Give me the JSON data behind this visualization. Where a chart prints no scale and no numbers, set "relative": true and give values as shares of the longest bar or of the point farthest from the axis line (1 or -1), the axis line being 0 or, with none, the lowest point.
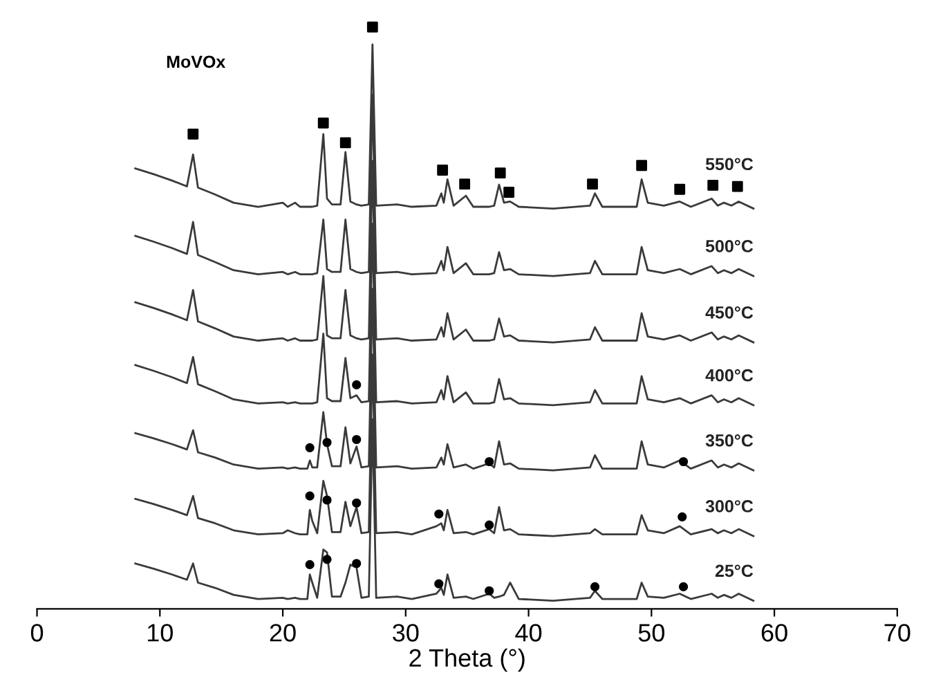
{
  "chart_data": {
    "type": "line",
    "relative": true,
    "xlabel": "2 Theta (°)",
    "xlim": [
      0,
      70
    ],
    "xticks": [
      0,
      10,
      20,
      30,
      40,
      50,
      60,
      70
    ],
    "grid": false,
    "legend": false,
    "marker": "none",
    "line_style": "solid",
    "annotations": [
      "MoVOx"
    ],
    "x": [
      8,
      9.5,
      11,
      12.2,
      12.7,
      13.1,
      14.5,
      16,
      18,
      20,
      20.4,
      21,
      21.4,
      22.0,
      22.2,
      22.4,
      22.8,
      23.3,
      23.6,
      24.0,
      24.7,
      25.1,
      25.5,
      26.0,
      26.4,
      27.0,
      27.3,
      27.6,
      29.3,
      30.5,
      32.5,
      32.9,
      33.1,
      33.4,
      33.9,
      34.9,
      35.5,
      36.8,
      37.2,
      37.6,
      38.0,
      38.5,
      39.2,
      42,
      45.0,
      45.4,
      46.0,
      48.8,
      49.2,
      49.7,
      51,
      52.3,
      53.2,
      54.9,
      55.4,
      55.9,
      56.5,
      57.1,
      58.3
    ],
    "series": [
      {
        "name": "550°C",
        "color": "#3a3a3a",
        "values": [
          0.757,
          0.747,
          0.736,
          0.726,
          0.781,
          0.724,
          0.712,
          0.698,
          0.691,
          0.698,
          0.691,
          0.698,
          0.691,
          0.691,
          0.691,
          0.691,
          0.693,
          0.816,
          0.705,
          0.695,
          0.695,
          0.785,
          0.7,
          0.695,
          0.693,
          0.695,
          0.97,
          0.693,
          0.695,
          0.691,
          0.693,
          0.714,
          0.698,
          0.738,
          0.693,
          0.71,
          0.691,
          0.691,
          0.693,
          0.729,
          0.698,
          0.7,
          0.691,
          0.688,
          0.693,
          0.714,
          0.691,
          0.691,
          0.738,
          0.698,
          0.693,
          0.7,
          0.691,
          0.705,
          0.693,
          0.698,
          0.693,
          0.7,
          0.688
        ]
      },
      {
        "name": "500°C",
        "color": "#3a3a3a",
        "values": [
          0.641,
          0.631,
          0.62,
          0.61,
          0.665,
          0.608,
          0.596,
          0.582,
          0.575,
          0.579,
          0.575,
          0.579,
          0.575,
          0.575,
          0.575,
          0.575,
          0.577,
          0.669,
          0.584,
          0.579,
          0.579,
          0.669,
          0.584,
          0.579,
          0.577,
          0.579,
          0.884,
          0.577,
          0.579,
          0.575,
          0.577,
          0.598,
          0.582,
          0.622,
          0.577,
          0.594,
          0.575,
          0.575,
          0.577,
          0.613,
          0.582,
          0.584,
          0.575,
          0.572,
          0.577,
          0.598,
          0.575,
          0.575,
          0.622,
          0.582,
          0.577,
          0.584,
          0.575,
          0.589,
          0.577,
          0.582,
          0.577,
          0.584,
          0.572
        ]
      },
      {
        "name": "450°C",
        "color": "#3a3a3a",
        "values": [
          0.527,
          0.517,
          0.506,
          0.496,
          0.548,
          0.494,
          0.482,
          0.468,
          0.461,
          0.465,
          0.461,
          0.465,
          0.461,
          0.461,
          0.461,
          0.461,
          0.463,
          0.572,
          0.47,
          0.465,
          0.465,
          0.548,
          0.47,
          0.465,
          0.463,
          0.465,
          0.77,
          0.463,
          0.465,
          0.461,
          0.463,
          0.484,
          0.468,
          0.508,
          0.463,
          0.48,
          0.461,
          0.461,
          0.463,
          0.499,
          0.468,
          0.47,
          0.461,
          0.458,
          0.463,
          0.484,
          0.461,
          0.461,
          0.508,
          0.468,
          0.463,
          0.47,
          0.461,
          0.475,
          0.463,
          0.468,
          0.463,
          0.47,
          0.458
        ]
      },
      {
        "name": "400°C",
        "color": "#3a3a3a",
        "values": [
          0.419,
          0.409,
          0.398,
          0.388,
          0.433,
          0.386,
          0.374,
          0.36,
          0.353,
          0.355,
          0.353,
          0.355,
          0.353,
          0.353,
          0.353,
          0.353,
          0.355,
          0.473,
          0.362,
          0.357,
          0.357,
          0.431,
          0.362,
          0.367,
          0.355,
          0.357,
          0.662,
          0.355,
          0.357,
          0.353,
          0.355,
          0.376,
          0.36,
          0.4,
          0.355,
          0.372,
          0.353,
          0.353,
          0.355,
          0.395,
          0.36,
          0.362,
          0.353,
          0.35,
          0.355,
          0.376,
          0.353,
          0.353,
          0.4,
          0.36,
          0.355,
          0.362,
          0.353,
          0.367,
          0.355,
          0.36,
          0.355,
          0.362,
          0.35
        ]
      },
      {
        "name": "350°C",
        "color": "#3a3a3a",
        "values": [
          0.302,
          0.293,
          0.283,
          0.274,
          0.307,
          0.269,
          0.26,
          0.248,
          0.241,
          0.243,
          0.241,
          0.243,
          0.241,
          0.241,
          0.255,
          0.243,
          0.243,
          0.338,
          0.283,
          0.245,
          0.245,
          0.312,
          0.25,
          0.279,
          0.243,
          0.245,
          0.55,
          0.243,
          0.245,
          0.241,
          0.243,
          0.26,
          0.248,
          0.283,
          0.243,
          0.248,
          0.241,
          0.25,
          0.243,
          0.288,
          0.248,
          0.25,
          0.241,
          0.238,
          0.243,
          0.264,
          0.241,
          0.241,
          0.288,
          0.248,
          0.243,
          0.255,
          0.241,
          0.255,
          0.243,
          0.248,
          0.243,
          0.25,
          0.238
        ]
      },
      {
        "name": "300°C",
        "color": "#3a3a3a",
        "values": [
          0.189,
          0.18,
          0.17,
          0.161,
          0.194,
          0.156,
          0.147,
          0.135,
          0.128,
          0.13,
          0.135,
          0.13,
          0.128,
          0.128,
          0.17,
          0.151,
          0.13,
          0.22,
          0.194,
          0.132,
          0.132,
          0.184,
          0.142,
          0.175,
          0.13,
          0.132,
          0.437,
          0.13,
          0.132,
          0.128,
          0.142,
          0.147,
          0.135,
          0.17,
          0.13,
          0.132,
          0.128,
          0.137,
          0.13,
          0.175,
          0.135,
          0.137,
          0.128,
          0.125,
          0.13,
          0.137,
          0.128,
          0.128,
          0.161,
          0.135,
          0.13,
          0.142,
          0.128,
          0.137,
          0.13,
          0.135,
          0.13,
          0.137,
          0.125
        ]
      },
      {
        "name": "25°C",
        "color": "#3a3a3a",
        "values": [
          0.078,
          0.069,
          0.059,
          0.05,
          0.078,
          0.045,
          0.036,
          0.024,
          0.017,
          0.019,
          0.017,
          0.019,
          0.017,
          0.017,
          0.059,
          0.045,
          0.019,
          0.102,
          0.097,
          0.021,
          0.021,
          0.045,
          0.076,
          0.071,
          0.019,
          0.021,
          0.326,
          0.019,
          0.021,
          0.017,
          0.026,
          0.036,
          0.024,
          0.059,
          0.019,
          0.021,
          0.017,
          0.026,
          0.019,
          0.021,
          0.024,
          0.045,
          0.017,
          0.014,
          0.019,
          0.031,
          0.017,
          0.017,
          0.045,
          0.021,
          0.019,
          0.026,
          0.017,
          0.026,
          0.019,
          0.024,
          0.019,
          0.026,
          0.014
        ]
      },
      {
        "type": "scatter",
        "marker": "square",
        "color": "#000000",
        "x": [
          12.7,
          23.3,
          25.1,
          27.3,
          33.0,
          34.8,
          37.7,
          38.4,
          45.2,
          49.2,
          52.3,
          55.0,
          57.0
        ],
        "values": [
          0.816,
          0.835,
          0.801,
          1.0,
          0.754,
          0.73,
          0.749,
          0.716,
          0.73,
          0.762,
          0.721,
          0.728,
          0.726
        ]
      },
      {
        "type": "scatter",
        "marker": "circle",
        "color": "#000000",
        "x": [
          26.0,
          22.2,
          23.6,
          26.0,
          36.8,
          52.6,
          22.2,
          23.6,
          26.0,
          32.7,
          36.8,
          52.5,
          22.2,
          23.6,
          26.0,
          32.7,
          36.8,
          45.4,
          52.6
        ],
        "values": [
          0.385,
          0.277,
          0.286,
          0.291,
          0.253,
          0.253,
          0.194,
          0.187,
          0.182,
          0.163,
          0.144,
          0.158,
          0.076,
          0.085,
          0.078,
          0.043,
          0.031,
          0.038,
          0.038
        ]
      }
    ]
  }
}
